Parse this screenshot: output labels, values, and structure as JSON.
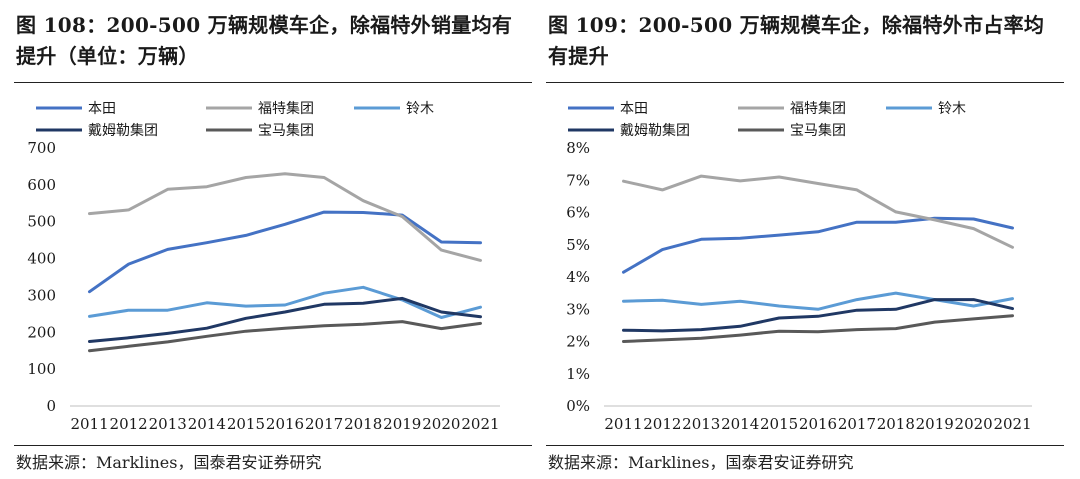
{
  "charts": [
    {
      "figure_title": "图 108：200-500 万辆规模车企，除福特外销量均有提升（单位：万辆）",
      "source": "数据来源：Marklines，国泰君安证券研究"
    },
    {
      "figure_title": "图 109：200-500 万辆规模车企，除福特外市占率均有提升",
      "source": "数据来源：Marklines，国泰君安证券研究"
    }
  ],
  "chart_data": [
    {
      "type": "line",
      "title": "图 108：200-500 万辆规模车企，除福特外销量均有提升（单位：万辆）",
      "xlabel": "",
      "ylabel": "万辆",
      "x": [
        "2011",
        "2012",
        "2013",
        "2014",
        "2015",
        "2016",
        "2017",
        "2018",
        "2019",
        "2020",
        "2021"
      ],
      "ylim": [
        0,
        700
      ],
      "yticks": [
        0,
        100,
        200,
        300,
        400,
        500,
        600,
        700
      ],
      "ytick_labels": [
        "0",
        "100",
        "200",
        "300",
        "400",
        "500",
        "600",
        "700"
      ],
      "legend_position": "top",
      "grid": false,
      "series": [
        {
          "name": "本田",
          "color": "#4472C4",
          "values": [
            310,
            385,
            425,
            443,
            463,
            493,
            526,
            525,
            518,
            445,
            443
          ]
        },
        {
          "name": "福特集团",
          "color": "#A5A5A5",
          "values": [
            522,
            532,
            588,
            595,
            620,
            630,
            620,
            557,
            514,
            423,
            395
          ]
        },
        {
          "name": "铃木",
          "color": "#5B9BD5",
          "values": [
            243,
            260,
            260,
            280,
            271,
            274,
            306,
            322,
            288,
            240,
            268
          ]
        },
        {
          "name": "戴姆勒集团",
          "color": "#203864",
          "values": [
            175,
            185,
            197,
            211,
            238,
            255,
            276,
            279,
            292,
            255,
            242
          ]
        },
        {
          "name": "宝马集团",
          "color": "#595959",
          "values": [
            150,
            162,
            174,
            189,
            203,
            211,
            218,
            222,
            229,
            210,
            224
          ]
        }
      ]
    },
    {
      "type": "line",
      "title": "图 109：200-500 万辆规模车企，除福特外市占率均有提升",
      "xlabel": "",
      "ylabel": "",
      "x": [
        "2011",
        "2012",
        "2013",
        "2014",
        "2015",
        "2016",
        "2017",
        "2018",
        "2019",
        "2020",
        "2021"
      ],
      "ylim": [
        0,
        8
      ],
      "yticks": [
        0,
        1,
        2,
        3,
        4,
        5,
        6,
        7,
        8
      ],
      "ytick_labels": [
        "0%",
        "1%",
        "2%",
        "3%",
        "4%",
        "5%",
        "6%",
        "7%",
        "8%"
      ],
      "legend_position": "top",
      "grid": false,
      "series": [
        {
          "name": "本田",
          "color": "#4472C4",
          "values": [
            4.15,
            4.85,
            5.17,
            5.2,
            5.3,
            5.4,
            5.7,
            5.7,
            5.82,
            5.8,
            5.52
          ]
        },
        {
          "name": "福特集团",
          "color": "#A5A5A5",
          "values": [
            6.97,
            6.7,
            7.13,
            6.98,
            7.1,
            6.9,
            6.7,
            6.02,
            5.77,
            5.5,
            4.92
          ]
        },
        {
          "name": "铃木",
          "color": "#5B9BD5",
          "values": [
            3.25,
            3.28,
            3.15,
            3.25,
            3.1,
            3.0,
            3.3,
            3.5,
            3.3,
            3.1,
            3.33
          ]
        },
        {
          "name": "戴姆勒集团",
          "color": "#203864",
          "values": [
            2.35,
            2.33,
            2.37,
            2.47,
            2.73,
            2.78,
            2.97,
            3.0,
            3.3,
            3.3,
            3.02
          ]
        },
        {
          "name": "宝马集团",
          "color": "#595959",
          "values": [
            2.0,
            2.05,
            2.1,
            2.2,
            2.32,
            2.3,
            2.37,
            2.4,
            2.6,
            2.7,
            2.8
          ]
        }
      ]
    }
  ]
}
